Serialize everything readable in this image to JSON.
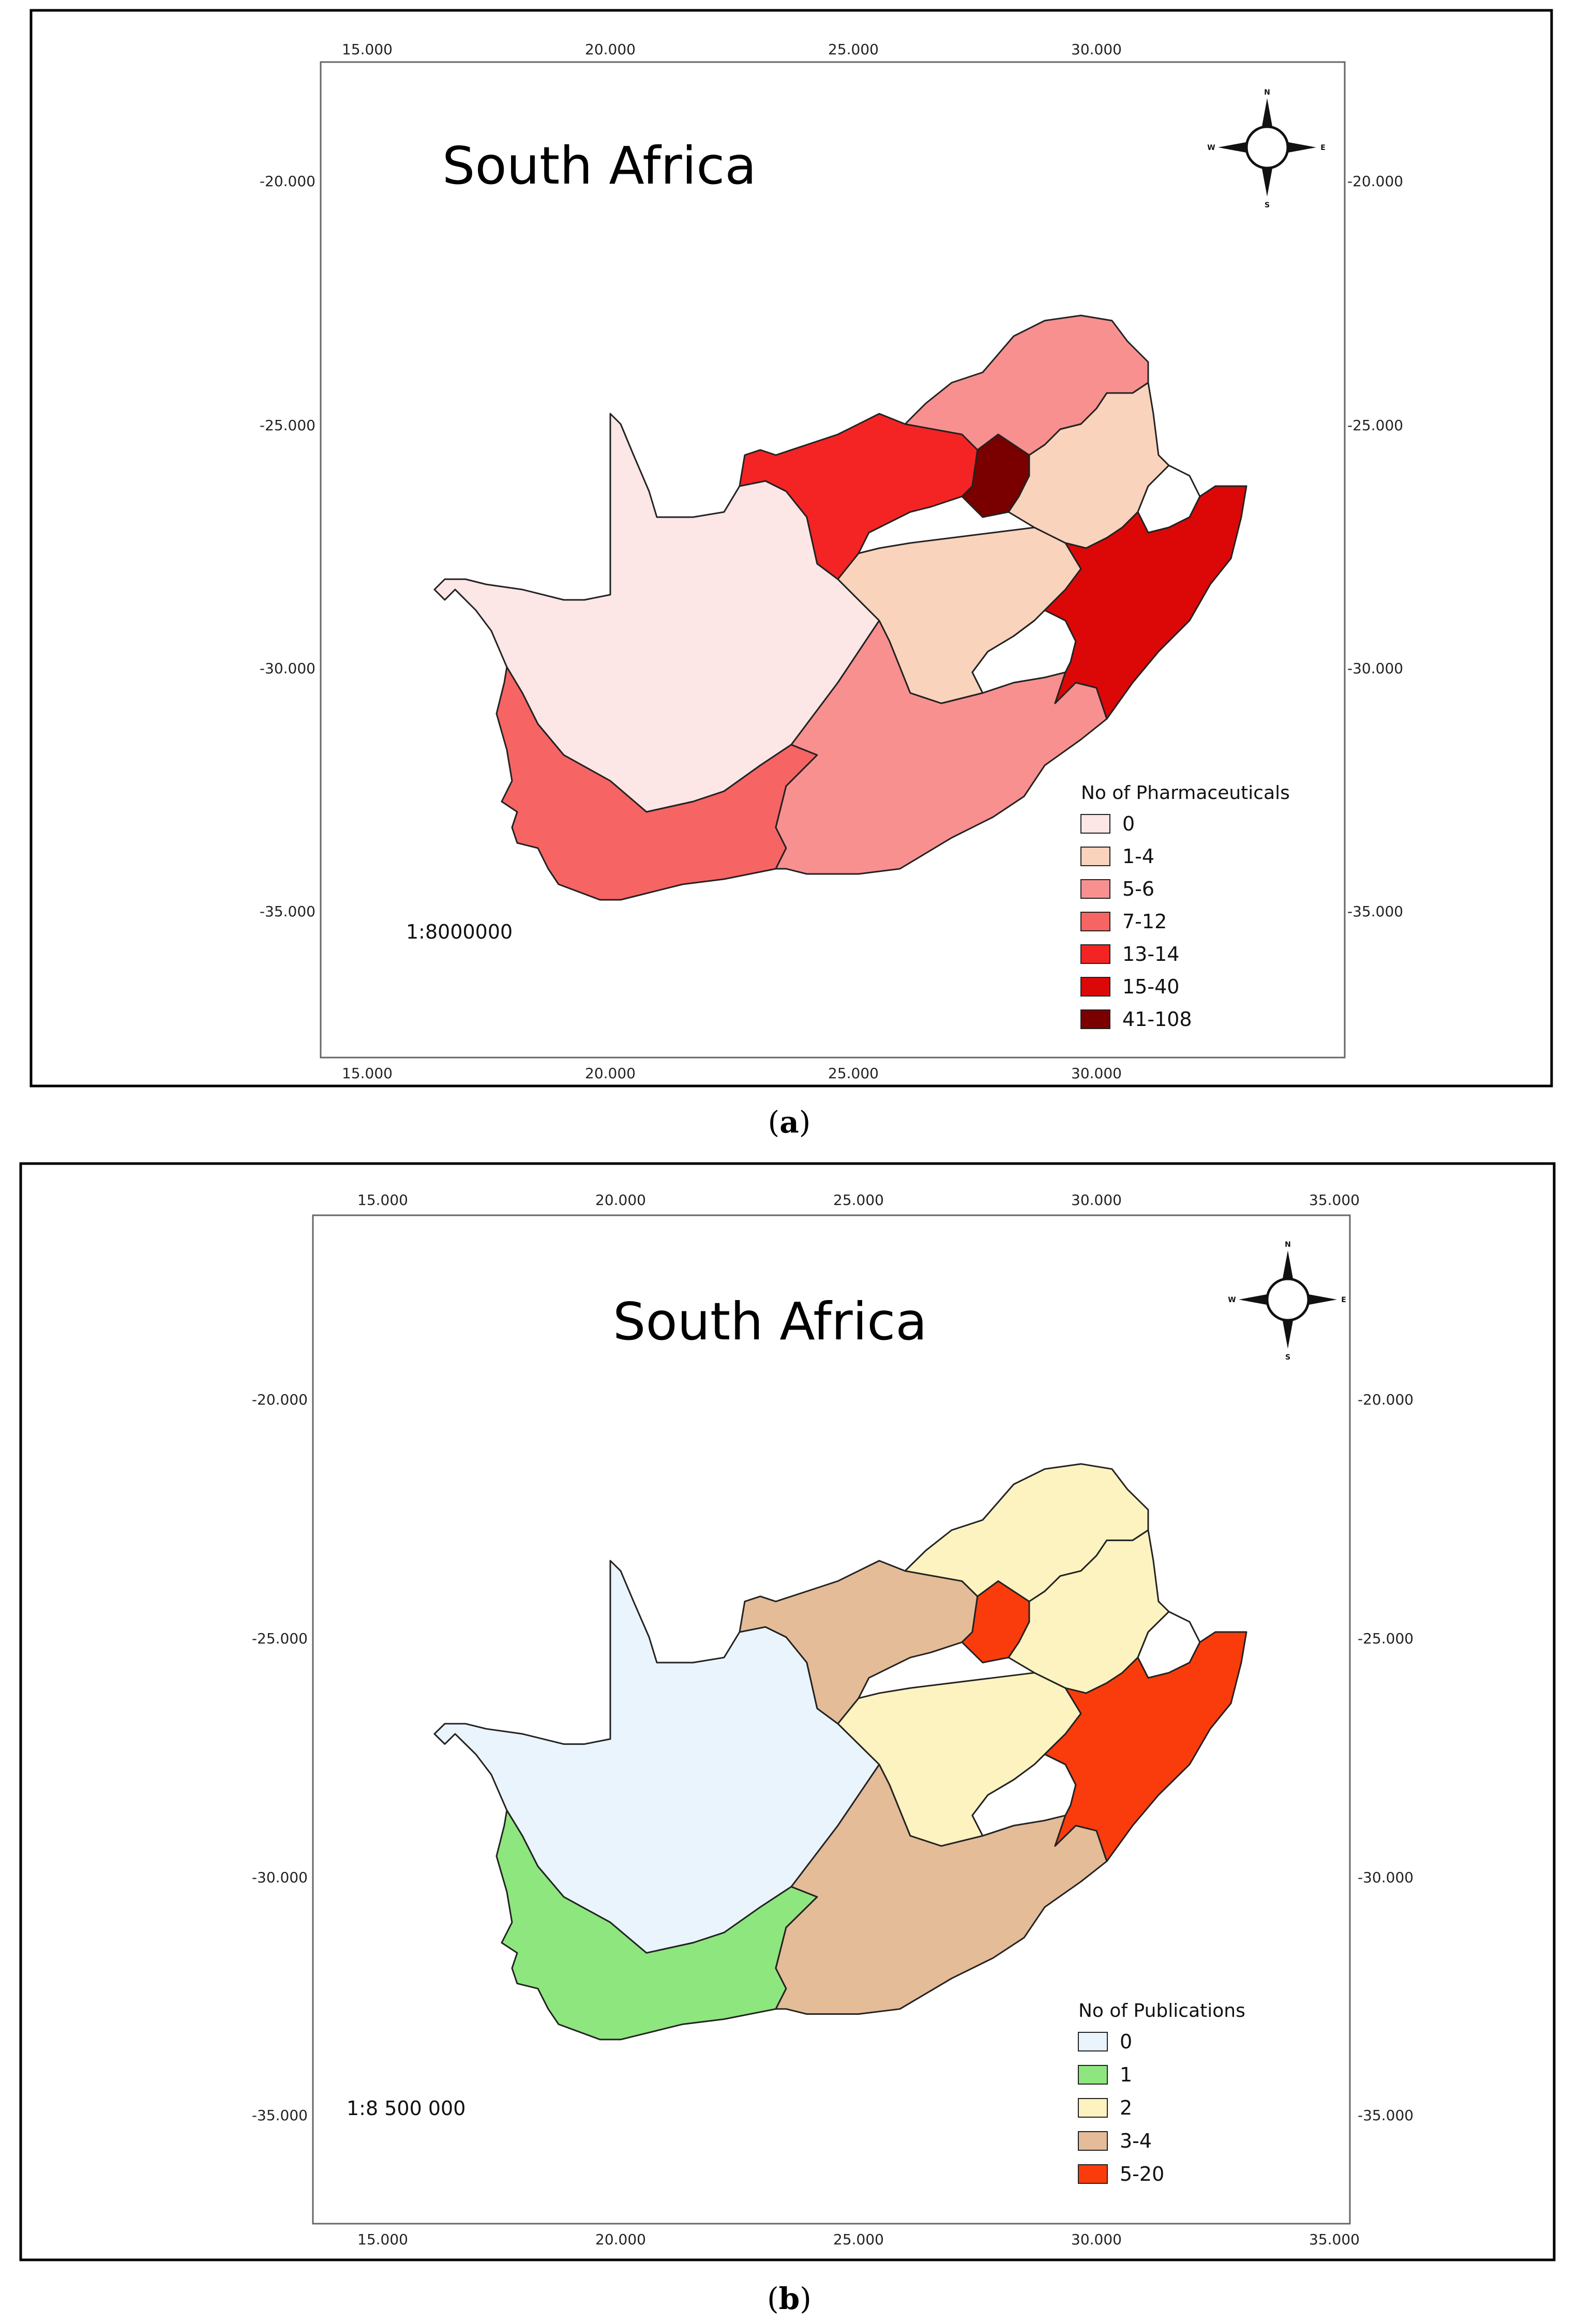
{
  "panels": [
    {
      "id": "a",
      "title": "South Africa",
      "caption_letter": "a",
      "scale": "1:8000000",
      "x_ticks": [
        "15.000",
        "20.000",
        "25.000",
        "30.000"
      ],
      "y_ticks": [
        "-20.000",
        "-25.000",
        "-30.000",
        "-35.000"
      ],
      "legend_title": "No of Pharmaceuticals",
      "legend": [
        {
          "label": "0",
          "color": "#fce6e6"
        },
        {
          "label": "1-4",
          "color": "#f9d3bc"
        },
        {
          "label": "5-6",
          "color": "#f89090"
        },
        {
          "label": "7-12",
          "color": "#f66464"
        },
        {
          "label": "13-14",
          "color": "#f42424"
        },
        {
          "label": "15-40",
          "color": "#dc0808"
        },
        {
          "label": "41-108",
          "color": "#7a0000"
        }
      ],
      "provinces": {
        "northern_cape": "#fce6e6",
        "western_cape": "#f66464",
        "eastern_cape": "#f89090",
        "free_state": "#f9d3bc",
        "north_west": "#f42424",
        "gauteng": "#7a0000",
        "limpopo": "#f89090",
        "mpumalanga": "#f9d3bc",
        "kwazulu_natal": "#dc0808"
      },
      "compass": {
        "n": "N",
        "s": "S",
        "e": "E",
        "w": "W"
      }
    },
    {
      "id": "b",
      "title": "South Africa",
      "caption_letter": "b",
      "scale": "1:8 500 000",
      "x_ticks": [
        "15.000",
        "20.000",
        "25.000",
        "30.000",
        "35.000"
      ],
      "y_ticks": [
        "-20.000",
        "-25.000",
        "-30.000",
        "-35.000"
      ],
      "legend_title": "No of Publications",
      "legend": [
        {
          "label": "0",
          "color": "#e9f4fd"
        },
        {
          "label": "1",
          "color": "#8ee67e"
        },
        {
          "label": "2",
          "color": "#fcf3c0"
        },
        {
          "label": "3-4",
          "color": "#e4bc98"
        },
        {
          "label": "5-20",
          "color": "#fa3c0c"
        }
      ],
      "provinces": {
        "northern_cape": "#e9f4fd",
        "western_cape": "#8ee67e",
        "eastern_cape": "#e4bc98",
        "free_state": "#fcf3c0",
        "north_west": "#e4bc98",
        "gauteng": "#fa3c0c",
        "limpopo": "#fcf3c0",
        "mpumalanga": "#fcf3c0",
        "kwazulu_natal": "#fa3c0c"
      },
      "compass": {
        "n": "N",
        "s": "S",
        "e": "E",
        "w": "W"
      }
    }
  ]
}
